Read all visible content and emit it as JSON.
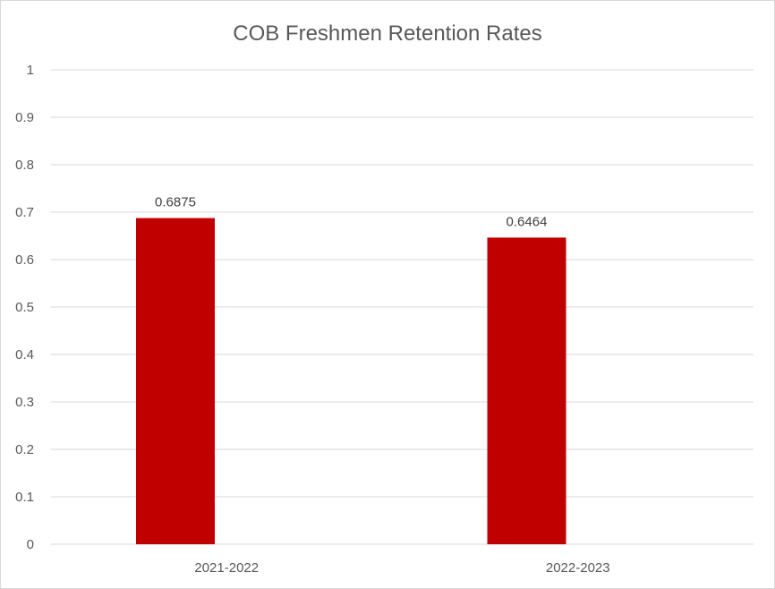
{
  "chart_data": {
    "type": "bar",
    "title": "COB Freshmen Retention Rates",
    "xlabel": "",
    "ylabel": "",
    "categories": [
      "2021-2022",
      "2022-2023"
    ],
    "values": [
      0.6875,
      0.6464
    ],
    "data_labels": [
      "0.6875",
      "0.6464"
    ],
    "ylim": [
      0,
      1
    ],
    "yticks": [
      "0",
      "0.1",
      "0.2",
      "0.3",
      "0.4",
      "0.5",
      "0.6",
      "0.7",
      "0.8",
      "0.9",
      "1"
    ],
    "grid": true,
    "legend": "none",
    "colors": {
      "bar": "#C00000",
      "gridline": "#D9D9D9",
      "text": "#595959"
    }
  }
}
